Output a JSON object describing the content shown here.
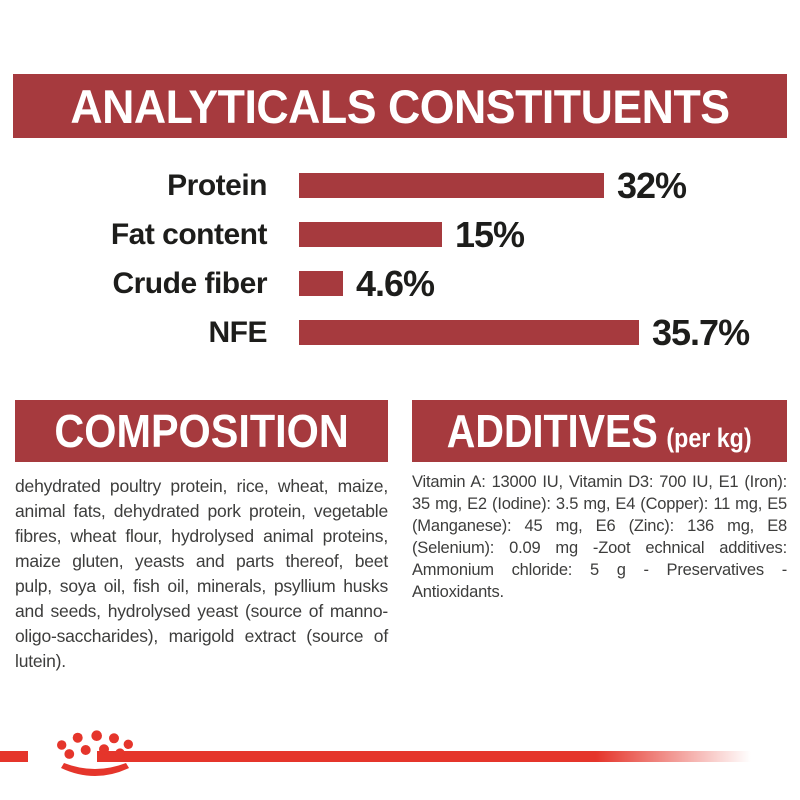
{
  "colors": {
    "banner_red": "#A63A3E",
    "bar_red": "#A63A3E",
    "accent_red": "#E5352B",
    "label_black": "#1D1D1B",
    "body_gray": "#3D3D3C"
  },
  "header": {
    "title": "ANALYTICALS CONSTITUENTS"
  },
  "chart_data": {
    "type": "bar",
    "orientation": "horizontal",
    "title": "ANALYTICALS CONSTITUENTS",
    "categories": [
      "Protein",
      "Fat content",
      "Crude fiber",
      "NFE"
    ],
    "values": [
      32,
      15,
      4.6,
      35.7
    ],
    "value_labels": [
      "32%",
      "15%",
      "4.6%",
      "35.7%"
    ],
    "unit": "%",
    "xlim": [
      0,
      35.7
    ],
    "grid": false,
    "axis_ticks": false,
    "bar_color": "#A63A3E",
    "value_label_position": "right-of-bar",
    "category_label_position": "left-of-bar"
  },
  "composition": {
    "title": "COMPOSITION",
    "body": "dehydrated poultry protein, rice, wheat, maize, animal fats, dehydrated pork protein, vegetable fibres, wheat flour, hydrolysed animal proteins, maize gluten, yeasts and parts thereof, beet pulp, soya oil, fish oil, minerals, psyllium husks and seeds, hydrolysed yeast (source of manno-oligo-saccharides), marigold extract (source of lutein)."
  },
  "additives": {
    "title": "ADDITIVES",
    "unit": "(per kg)",
    "body": "Vitamin A: 13000 IU, Vitamin D3: 700 IU, E1 (Iron): 35 mg, E2 (Iodine): 3.5 mg, E4 (Copper): 11 mg, E5 (Manganese): 45 mg, E6 (Zinc): 136 mg, E8 (Selenium): 0.09 mg -Zoot echnical additives: Ammonium chloride: 5 g - Preservatives - Antioxidants."
  },
  "footer": {
    "logo": "royal-canin-crown"
  }
}
